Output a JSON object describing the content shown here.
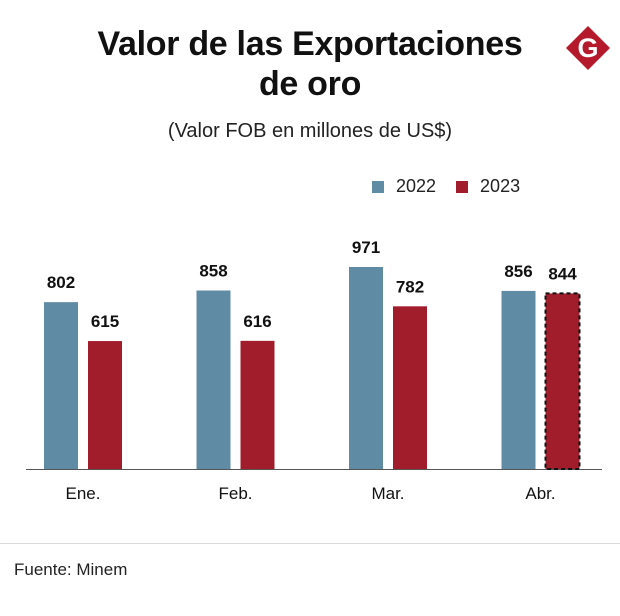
{
  "header": {
    "title_line1": "Valor de las Exportaciones",
    "title_line2": "de oro",
    "subtitle": "(Valor FOB en millones de US$)",
    "logo_letter": "G"
  },
  "legend": {
    "series_2022": "2022",
    "series_2023": "2023"
  },
  "footer": {
    "source": "Fuente: Minem"
  },
  "colors": {
    "series_2022": "#5f8ba4",
    "series_2023": "#a11d2b",
    "logo": "#b5192c"
  },
  "chart_data": {
    "type": "bar",
    "title": "Valor de las Exportaciones de oro",
    "subtitle": "(Valor FOB en millones de US$)",
    "categories": [
      "Ene.",
      "Feb.",
      "Mar.",
      "Abr."
    ],
    "series": [
      {
        "name": "2022",
        "values": [
          802,
          858,
          971,
          856
        ]
      },
      {
        "name": "2023",
        "values": [
          615,
          616,
          782,
          844
        ]
      }
    ],
    "ylim": [
      0,
      971
    ],
    "highlighted": {
      "series": "2023",
      "category": "Abr.",
      "style": "dashed-outline"
    },
    "legend_position": "top-right",
    "xlabel": "",
    "ylabel": ""
  }
}
